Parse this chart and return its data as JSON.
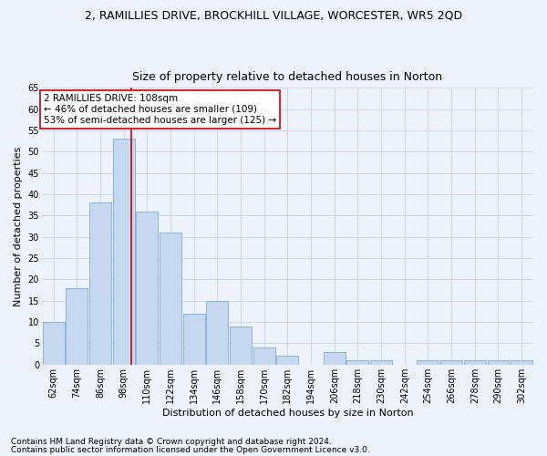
{
  "title": "2, RAMILLIES DRIVE, BROCKHILL VILLAGE, WORCESTER, WR5 2QD",
  "subtitle": "Size of property relative to detached houses in Norton",
  "xlabel": "Distribution of detached houses by size in Norton",
  "ylabel": "Number of detached properties",
  "bar_color": "#c5d8ef",
  "bar_edge_color": "#7aafd4",
  "vline_color": "#cc0000",
  "vline_x": 108,
  "annotation_text": "2 RAMILLIES DRIVE: 108sqm\n← 46% of detached houses are smaller (109)\n53% of semi-detached houses are larger (125) →",
  "bin_edges": [
    62,
    74,
    86,
    98,
    110,
    122,
    134,
    146,
    158,
    170,
    182,
    194,
    206,
    218,
    230,
    242,
    254,
    266,
    278,
    290,
    302,
    314
  ],
  "bar_heights": [
    10,
    18,
    38,
    53,
    36,
    31,
    12,
    15,
    9,
    4,
    2,
    0,
    3,
    1,
    1,
    0,
    1,
    1,
    1,
    1,
    1
  ],
  "ylim": [
    0,
    65
  ],
  "yticks": [
    0,
    5,
    10,
    15,
    20,
    25,
    30,
    35,
    40,
    45,
    50,
    55,
    60,
    65
  ],
  "grid_color": "#ccd6e8",
  "footnote1": "Contains HM Land Registry data © Crown copyright and database right 2024.",
  "footnote2": "Contains public sector information licensed under the Open Government Licence v3.0.",
  "bg_color": "#edf2fb",
  "plot_bg_color": "#edf2fb",
  "annotation_box_color": "#ffffff",
  "annotation_box_edge": "#cc0000",
  "title_fontsize": 9,
  "subtitle_fontsize": 9,
  "axis_label_fontsize": 8,
  "tick_fontsize": 7,
  "annotation_fontsize": 7.5,
  "footnote_fontsize": 6.5
}
